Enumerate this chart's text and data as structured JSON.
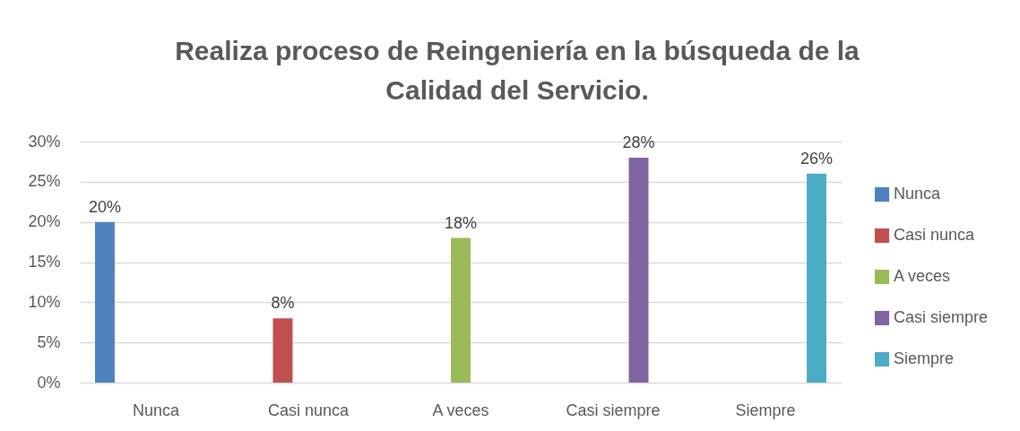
{
  "chart_data": {
    "type": "bar",
    "title": "Realiza proceso de Reingeniería en la búsqueda de la Calidad del Servicio.",
    "categories": [
      "Nunca",
      "Casi nunca",
      "A veces",
      "Casi siempre",
      "Siempre"
    ],
    "series": [
      {
        "name": "Nunca",
        "color": "#4f81bd",
        "values": [
          20,
          null,
          null,
          null,
          null
        ],
        "value_labels": [
          "20%",
          null,
          null,
          null,
          null
        ]
      },
      {
        "name": "Casi nunca",
        "color": "#c0504d",
        "values": [
          null,
          8,
          null,
          null,
          null
        ],
        "value_labels": [
          null,
          "8%",
          null,
          null,
          null
        ]
      },
      {
        "name": "A veces",
        "color": "#9bbb59",
        "values": [
          null,
          null,
          18,
          null,
          null
        ],
        "value_labels": [
          null,
          null,
          "18%",
          null,
          null
        ]
      },
      {
        "name": "Casi siempre",
        "color": "#8064a2",
        "values": [
          null,
          null,
          null,
          28,
          null
        ],
        "value_labels": [
          null,
          null,
          null,
          "28%",
          null
        ]
      },
      {
        "name": "Siempre",
        "color": "#4bacc6",
        "values": [
          null,
          null,
          null,
          null,
          26
        ],
        "value_labels": [
          null,
          null,
          null,
          null,
          "26%"
        ]
      }
    ],
    "ylim": [
      0,
      30
    ],
    "yticks": [
      {
        "value": 0,
        "label": "0%"
      },
      {
        "value": 5,
        "label": "5%"
      },
      {
        "value": 10,
        "label": "10%"
      },
      {
        "value": 15,
        "label": "15%"
      },
      {
        "value": 20,
        "label": "20%"
      },
      {
        "value": 25,
        "label": "25%"
      },
      {
        "value": 30,
        "label": "30%"
      }
    ],
    "grid": "y",
    "legend": "right"
  }
}
